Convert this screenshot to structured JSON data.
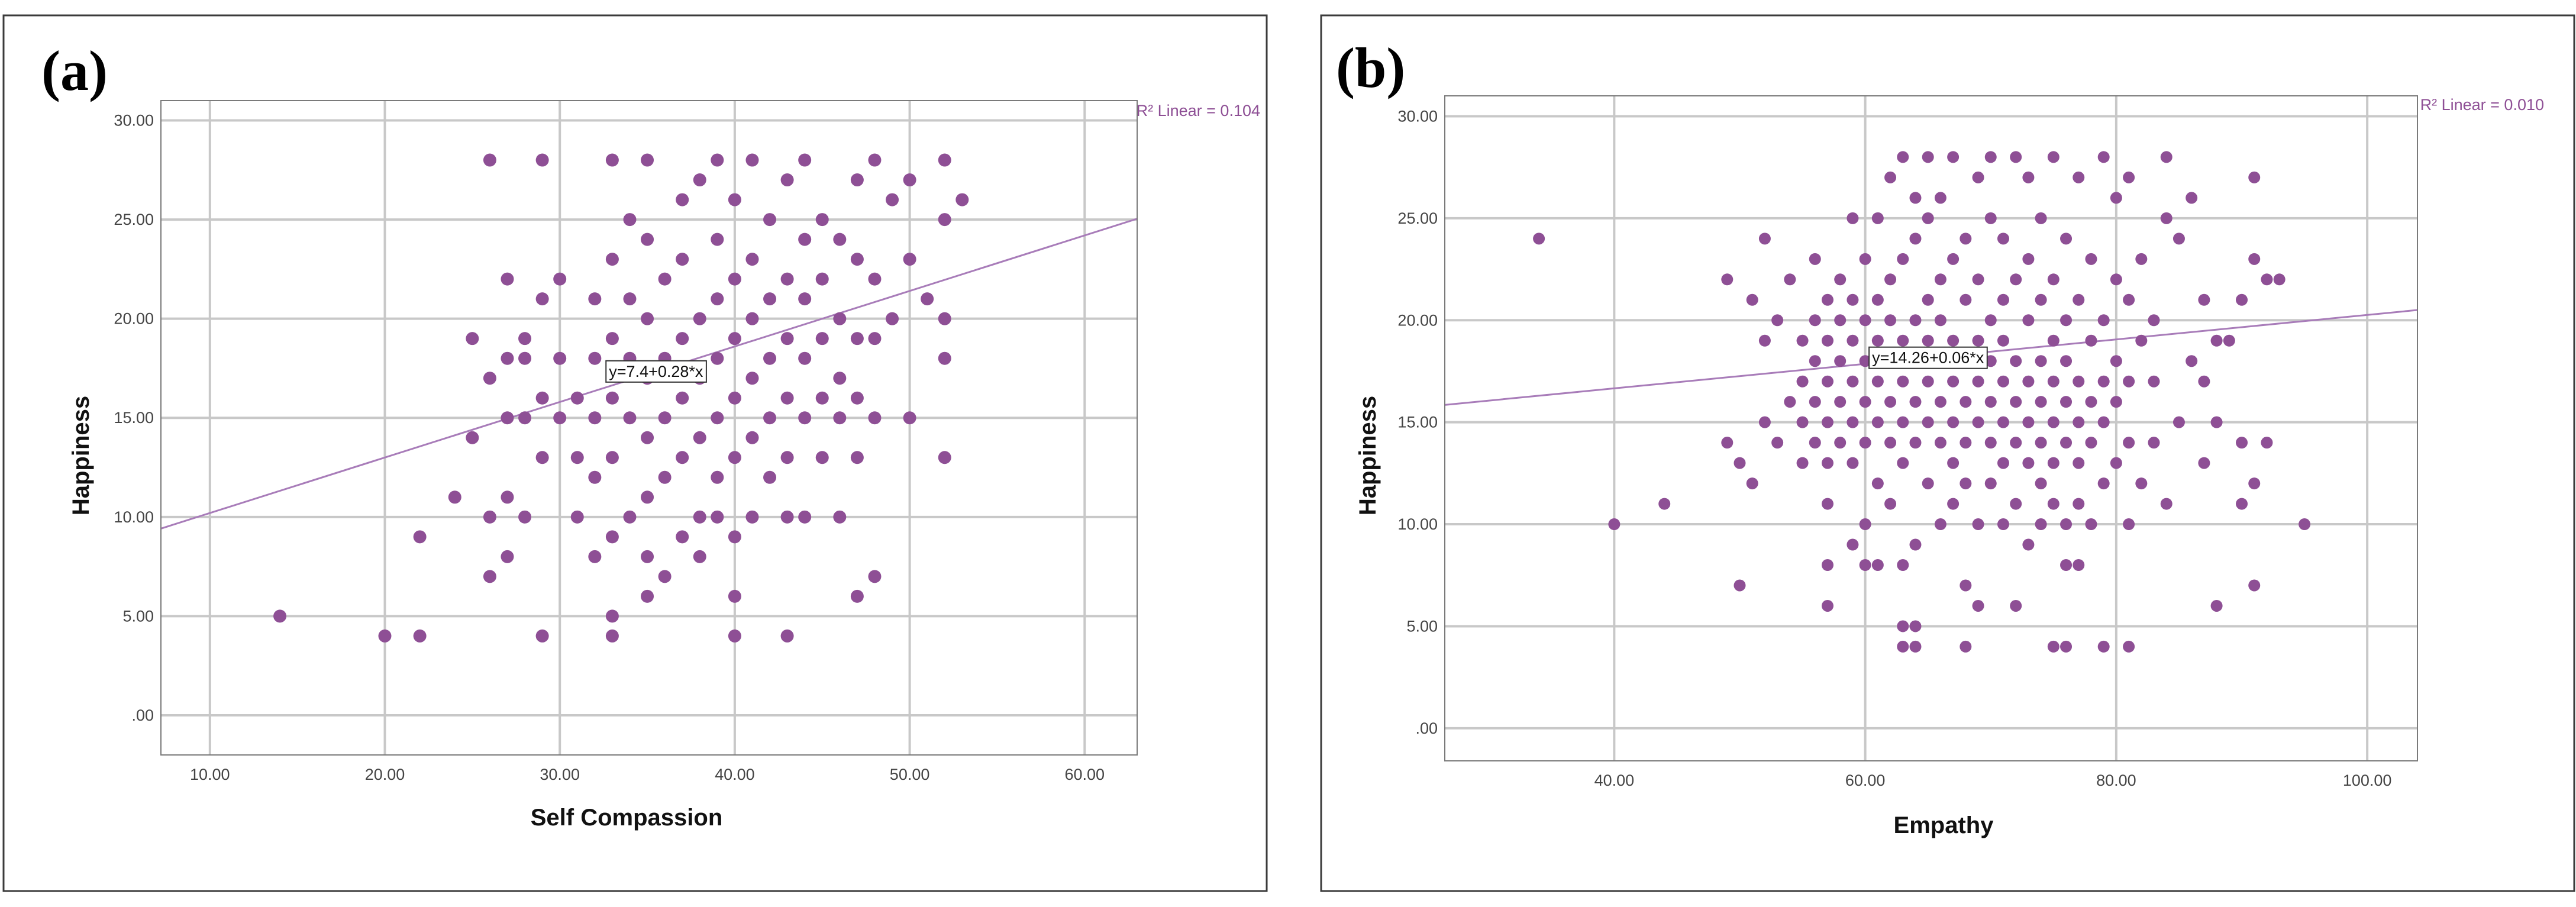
{
  "chart_data": [
    {
      "panel": "(a)",
      "type": "scatter",
      "xlabel": "Self Compassion",
      "ylabel": "Happiness",
      "xlim": [
        7.2,
        63
      ],
      "ylim": [
        -2,
        31
      ],
      "xticks": [
        "10.00",
        "20.00",
        "30.00",
        "40.00",
        "50.00",
        "60.00"
      ],
      "xtick_values": [
        10,
        20,
        30,
        40,
        50,
        60
      ],
      "yticks": [
        ".00",
        "5.00",
        "10.00",
        "15.00",
        "20.00",
        "25.00",
        "30.00"
      ],
      "ytick_values": [
        0,
        5,
        10,
        15,
        20,
        25,
        30
      ],
      "fit": {
        "intercept": 7.4,
        "slope": 0.28,
        "equation": "y=7.4+0.28*x",
        "label_x": 35.5
      },
      "r2_label": "R² Linear = 0.104",
      "points": [
        [
          14,
          5
        ],
        [
          20,
          4
        ],
        [
          22,
          4
        ],
        [
          22,
          9
        ],
        [
          24,
          11
        ],
        [
          25,
          14
        ],
        [
          25,
          19
        ],
        [
          26,
          7
        ],
        [
          26,
          10
        ],
        [
          26,
          17
        ],
        [
          26,
          28
        ],
        [
          27,
          8
        ],
        [
          27,
          11
        ],
        [
          27,
          15
        ],
        [
          27,
          18
        ],
        [
          27,
          22
        ],
        [
          28,
          10
        ],
        [
          28,
          15
        ],
        [
          28,
          18
        ],
        [
          28,
          19
        ],
        [
          29,
          4
        ],
        [
          29,
          13
        ],
        [
          29,
          16
        ],
        [
          29,
          21
        ],
        [
          29,
          28
        ],
        [
          30,
          15
        ],
        [
          30,
          18
        ],
        [
          30,
          22
        ],
        [
          31,
          10
        ],
        [
          31,
          13
        ],
        [
          31,
          16
        ],
        [
          32,
          8
        ],
        [
          32,
          12
        ],
        [
          32,
          15
        ],
        [
          32,
          18
        ],
        [
          32,
          21
        ],
        [
          33,
          4
        ],
        [
          33,
          5
        ],
        [
          33,
          9
        ],
        [
          33,
          13
        ],
        [
          33,
          16
        ],
        [
          33,
          19
        ],
        [
          33,
          23
        ],
        [
          33,
          28
        ],
        [
          34,
          10
        ],
        [
          34,
          15
        ],
        [
          34,
          18
        ],
        [
          34,
          21
        ],
        [
          34,
          25
        ],
        [
          35,
          6
        ],
        [
          35,
          8
        ],
        [
          35,
          11
        ],
        [
          35,
          14
        ],
        [
          35,
          17
        ],
        [
          35,
          20
        ],
        [
          35,
          24
        ],
        [
          35,
          28
        ],
        [
          36,
          7
        ],
        [
          36,
          12
        ],
        [
          36,
          15
        ],
        [
          36,
          18
        ],
        [
          36,
          22
        ],
        [
          37,
          9
        ],
        [
          37,
          13
        ],
        [
          37,
          16
        ],
        [
          37,
          19
        ],
        [
          37,
          23
        ],
        [
          37,
          26
        ],
        [
          38,
          8
        ],
        [
          38,
          10
        ],
        [
          38,
          14
        ],
        [
          38,
          17
        ],
        [
          38,
          20
        ],
        [
          38,
          27
        ],
        [
          39,
          10
        ],
        [
          39,
          12
        ],
        [
          39,
          15
        ],
        [
          39,
          18
        ],
        [
          39,
          21
        ],
        [
          39,
          24
        ],
        [
          39,
          28
        ],
        [
          40,
          4
        ],
        [
          40,
          6
        ],
        [
          40,
          9
        ],
        [
          40,
          13
        ],
        [
          40,
          16
        ],
        [
          40,
          19
        ],
        [
          40,
          22
        ],
        [
          40,
          26
        ],
        [
          41,
          10
        ],
        [
          41,
          14
        ],
        [
          41,
          17
        ],
        [
          41,
          20
        ],
        [
          41,
          23
        ],
        [
          41,
          28
        ],
        [
          42,
          12
        ],
        [
          42,
          15
        ],
        [
          42,
          18
        ],
        [
          42,
          21
        ],
        [
          42,
          25
        ],
        [
          43,
          4
        ],
        [
          43,
          10
        ],
        [
          43,
          13
        ],
        [
          43,
          16
        ],
        [
          43,
          19
        ],
        [
          43,
          22
        ],
        [
          43,
          27
        ],
        [
          44,
          10
        ],
        [
          44,
          15
        ],
        [
          44,
          18
        ],
        [
          44,
          21
        ],
        [
          44,
          24
        ],
        [
          44,
          28
        ],
        [
          45,
          13
        ],
        [
          45,
          16
        ],
        [
          45,
          19
        ],
        [
          45,
          22
        ],
        [
          45,
          25
        ],
        [
          46,
          10
        ],
        [
          46,
          15
        ],
        [
          46,
          17
        ],
        [
          46,
          20
        ],
        [
          46,
          24
        ],
        [
          47,
          6
        ],
        [
          47,
          13
        ],
        [
          47,
          16
        ],
        [
          47,
          19
        ],
        [
          47,
          23
        ],
        [
          47,
          27
        ],
        [
          48,
          7
        ],
        [
          48,
          15
        ],
        [
          48,
          19
        ],
        [
          48,
          22
        ],
        [
          48,
          28
        ],
        [
          49,
          20
        ],
        [
          49,
          26
        ],
        [
          50,
          15
        ],
        [
          50,
          23
        ],
        [
          50,
          27
        ],
        [
          51,
          21
        ],
        [
          52,
          13
        ],
        [
          52,
          18
        ],
        [
          52,
          20
        ],
        [
          52,
          25
        ],
        [
          52,
          28
        ],
        [
          53,
          26
        ]
      ]
    },
    {
      "panel": "(b)",
      "type": "scatter",
      "xlabel": "Empathy",
      "ylabel": "Happiness",
      "xlim": [
        26.5,
        104
      ],
      "ylim": [
        -1.6,
        31
      ],
      "xticks": [
        "40.00",
        "60.00",
        "80.00",
        "100.00"
      ],
      "xtick_values": [
        40,
        60,
        80,
        100
      ],
      "yticks": [
        ".00",
        "5.00",
        "10.00",
        "15.00",
        "20.00",
        "25.00",
        "30.00"
      ],
      "ytick_values": [
        0,
        5,
        10,
        15,
        20,
        25,
        30
      ],
      "fit": {
        "intercept": 14.26,
        "slope": 0.06,
        "equation": "y=14.26+0.06*x",
        "label_x": 65
      },
      "r2_label": "R² Linear = 0.010",
      "points": [
        [
          34,
          24
        ],
        [
          40,
          10
        ],
        [
          44,
          11
        ],
        [
          49,
          14
        ],
        [
          49,
          22
        ],
        [
          50,
          7
        ],
        [
          50,
          13
        ],
        [
          51,
          12
        ],
        [
          51,
          21
        ],
        [
          52,
          15
        ],
        [
          52,
          19
        ],
        [
          52,
          24
        ],
        [
          53,
          14
        ],
        [
          53,
          20
        ],
        [
          54,
          16
        ],
        [
          54,
          22
        ],
        [
          55,
          13
        ],
        [
          55,
          15
        ],
        [
          55,
          17
        ],
        [
          55,
          19
        ],
        [
          56,
          14
        ],
        [
          56,
          16
        ],
        [
          56,
          18
        ],
        [
          56,
          20
        ],
        [
          56,
          23
        ],
        [
          57,
          6
        ],
        [
          57,
          8
        ],
        [
          57,
          11
        ],
        [
          57,
          13
        ],
        [
          57,
          15
        ],
        [
          57,
          17
        ],
        [
          57,
          19
        ],
        [
          57,
          21
        ],
        [
          58,
          14
        ],
        [
          58,
          16
        ],
        [
          58,
          18
        ],
        [
          58,
          20
        ],
        [
          58,
          22
        ],
        [
          59,
          9
        ],
        [
          59,
          13
        ],
        [
          59,
          15
        ],
        [
          59,
          17
        ],
        [
          59,
          19
        ],
        [
          59,
          21
        ],
        [
          59,
          25
        ],
        [
          60,
          8
        ],
        [
          60,
          10
        ],
        [
          60,
          14
        ],
        [
          60,
          16
        ],
        [
          60,
          18
        ],
        [
          60,
          20
        ],
        [
          60,
          23
        ],
        [
          61,
          8
        ],
        [
          61,
          12
        ],
        [
          61,
          15
        ],
        [
          61,
          17
        ],
        [
          61,
          19
        ],
        [
          61,
          21
        ],
        [
          61,
          25
        ],
        [
          62,
          11
        ],
        [
          62,
          14
        ],
        [
          62,
          16
        ],
        [
          62,
          18
        ],
        [
          62,
          20
        ],
        [
          62,
          22
        ],
        [
          62,
          27
        ],
        [
          63,
          4
        ],
        [
          63,
          5
        ],
        [
          63,
          8
        ],
        [
          63,
          13
        ],
        [
          63,
          15
        ],
        [
          63,
          17
        ],
        [
          63,
          19
        ],
        [
          63,
          23
        ],
        [
          63,
          28
        ],
        [
          64,
          4
        ],
        [
          64,
          5
        ],
        [
          64,
          9
        ],
        [
          64,
          14
        ],
        [
          64,
          16
        ],
        [
          64,
          18
        ],
        [
          64,
          20
        ],
        [
          64,
          24
        ],
        [
          64,
          26
        ],
        [
          65,
          12
        ],
        [
          65,
          15
        ],
        [
          65,
          17
        ],
        [
          65,
          19
        ],
        [
          65,
          21
        ],
        [
          65,
          25
        ],
        [
          65,
          28
        ],
        [
          66,
          10
        ],
        [
          66,
          14
        ],
        [
          66,
          16
        ],
        [
          66,
          18
        ],
        [
          66,
          20
        ],
        [
          66,
          22
        ],
        [
          66,
          26
        ],
        [
          67,
          11
        ],
        [
          67,
          13
        ],
        [
          67,
          15
        ],
        [
          67,
          17
        ],
        [
          67,
          19
        ],
        [
          67,
          23
        ],
        [
          67,
          28
        ],
        [
          68,
          4
        ],
        [
          68,
          7
        ],
        [
          68,
          12
        ],
        [
          68,
          14
        ],
        [
          68,
          16
        ],
        [
          68,
          18
        ],
        [
          68,
          21
        ],
        [
          68,
          24
        ],
        [
          69,
          6
        ],
        [
          69,
          10
        ],
        [
          69,
          15
        ],
        [
          69,
          17
        ],
        [
          69,
          19
        ],
        [
          69,
          22
        ],
        [
          69,
          27
        ],
        [
          70,
          12
        ],
        [
          70,
          14
        ],
        [
          70,
          16
        ],
        [
          70,
          18
        ],
        [
          70,
          20
        ],
        [
          70,
          25
        ],
        [
          70,
          28
        ],
        [
          71,
          10
        ],
        [
          71,
          13
        ],
        [
          71,
          15
        ],
        [
          71,
          17
        ],
        [
          71,
          19
        ],
        [
          71,
          21
        ],
        [
          71,
          24
        ],
        [
          72,
          6
        ],
        [
          72,
          11
        ],
        [
          72,
          14
        ],
        [
          72,
          16
        ],
        [
          72,
          18
        ],
        [
          72,
          22
        ],
        [
          72,
          28
        ],
        [
          73,
          9
        ],
        [
          73,
          13
        ],
        [
          73,
          15
        ],
        [
          73,
          17
        ],
        [
          73,
          20
        ],
        [
          73,
          23
        ],
        [
          73,
          27
        ],
        [
          74,
          10
        ],
        [
          74,
          12
        ],
        [
          74,
          14
        ],
        [
          74,
          16
        ],
        [
          74,
          18
        ],
        [
          74,
          21
        ],
        [
          74,
          25
        ],
        [
          75,
          4
        ],
        [
          75,
          11
        ],
        [
          75,
          13
        ],
        [
          75,
          15
        ],
        [
          75,
          17
        ],
        [
          75,
          19
        ],
        [
          75,
          22
        ],
        [
          75,
          28
        ],
        [
          76,
          4
        ],
        [
          76,
          8
        ],
        [
          76,
          10
        ],
        [
          76,
          14
        ],
        [
          76,
          16
        ],
        [
          76,
          18
        ],
        [
          76,
          20
        ],
        [
          76,
          24
        ],
        [
          77,
          8
        ],
        [
          77,
          11
        ],
        [
          77,
          13
        ],
        [
          77,
          15
        ],
        [
          77,
          17
        ],
        [
          77,
          21
        ],
        [
          77,
          27
        ],
        [
          78,
          10
        ],
        [
          78,
          14
        ],
        [
          78,
          16
        ],
        [
          78,
          19
        ],
        [
          78,
          23
        ],
        [
          79,
          4
        ],
        [
          79,
          12
        ],
        [
          79,
          15
        ],
        [
          79,
          17
        ],
        [
          79,
          20
        ],
        [
          79,
          28
        ],
        [
          80,
          13
        ],
        [
          80,
          16
        ],
        [
          80,
          18
        ],
        [
          80,
          22
        ],
        [
          80,
          26
        ],
        [
          81,
          4
        ],
        [
          81,
          10
        ],
        [
          81,
          14
        ],
        [
          81,
          17
        ],
        [
          81,
          21
        ],
        [
          81,
          27
        ],
        [
          82,
          12
        ],
        [
          82,
          19
        ],
        [
          82,
          23
        ],
        [
          83,
          14
        ],
        [
          83,
          17
        ],
        [
          83,
          20
        ],
        [
          84,
          11
        ],
        [
          84,
          25
        ],
        [
          84,
          28
        ],
        [
          85,
          15
        ],
        [
          85,
          24
        ],
        [
          86,
          18
        ],
        [
          86,
          26
        ],
        [
          87,
          13
        ],
        [
          87,
          17
        ],
        [
          87,
          21
        ],
        [
          88,
          6
        ],
        [
          88,
          15
        ],
        [
          88,
          19
        ],
        [
          89,
          19
        ],
        [
          90,
          11
        ],
        [
          90,
          14
        ],
        [
          90,
          21
        ],
        [
          91,
          7
        ],
        [
          91,
          12
        ],
        [
          91,
          23
        ],
        [
          91,
          27
        ],
        [
          92,
          14
        ],
        [
          92,
          22
        ],
        [
          93,
          22
        ],
        [
          95,
          10
        ]
      ]
    }
  ]
}
